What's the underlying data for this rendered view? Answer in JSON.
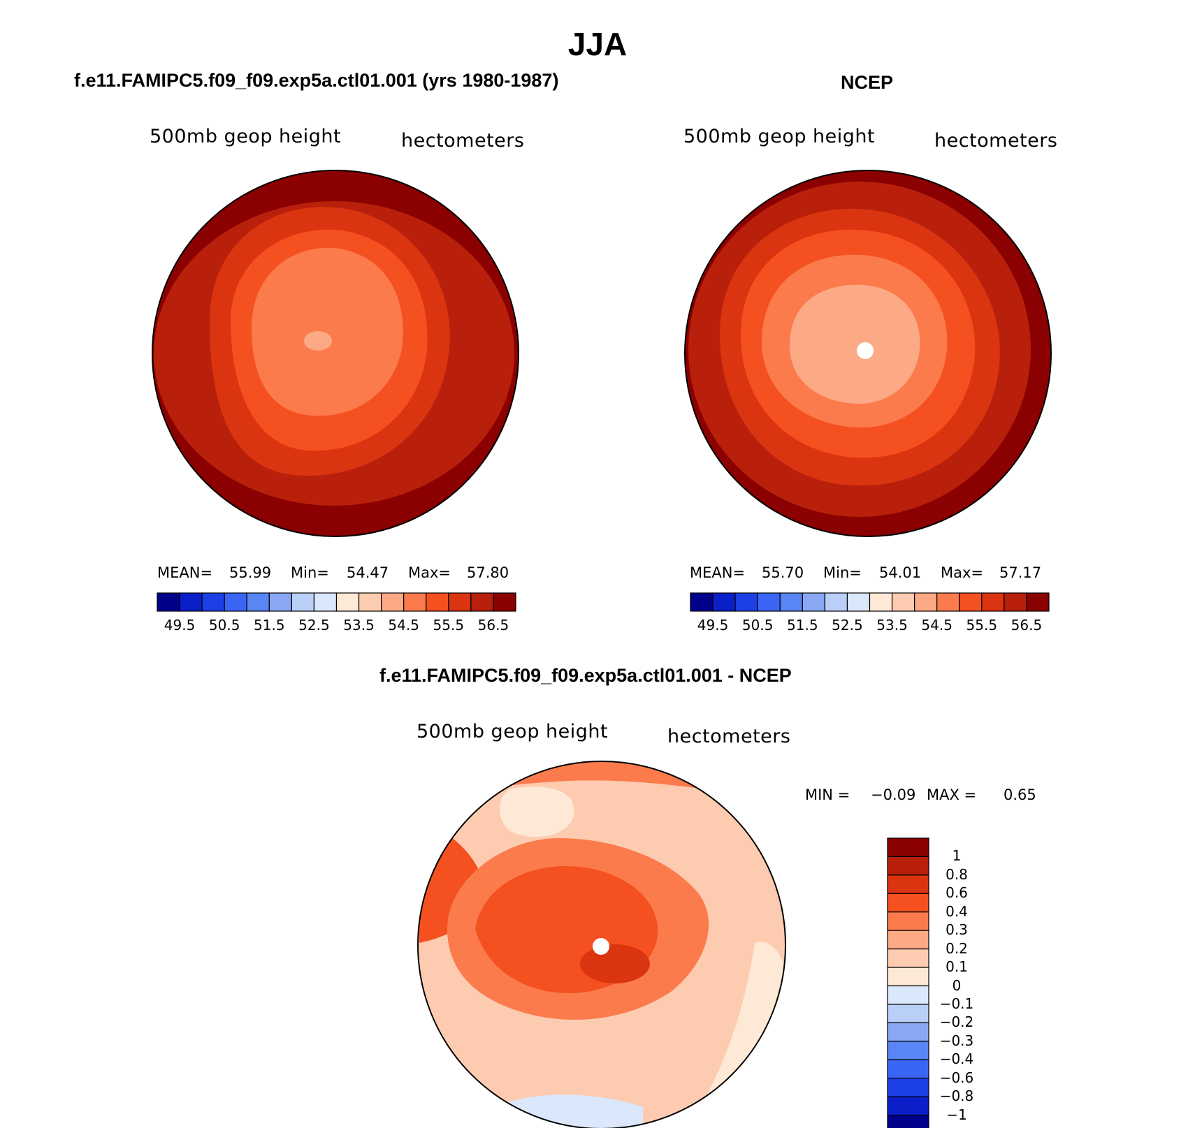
{
  "title": "JJA",
  "colors": {
    "abs_scale": [
      "#00008b",
      "#0a1fc8",
      "#1c3fe6",
      "#3b66f5",
      "#5a86f5",
      "#88a8f4",
      "#b9cff8",
      "#dbe8fb",
      "#fee9d6",
      "#fdcbb0",
      "#fca985",
      "#fb7b4d",
      "#f5501f",
      "#db3410",
      "#b8200b",
      "#8b0000"
    ],
    "diff_scale": [
      "#00008b",
      "#0a1fc8",
      "#1c3fe6",
      "#3b66f5",
      "#5a86f5",
      "#88a8f4",
      "#b9cff8",
      "#dbe8fb",
      "#fee9d6",
      "#fdcbb0",
      "#fca985",
      "#fb7b4d",
      "#f5501f",
      "#db3410",
      "#b8200b",
      "#8b0000"
    ]
  },
  "panels": [
    {
      "title": "f.e11.FAMIPC5.f09_f09.exp5a.ctl01.001 (yrs 1980-1987)",
      "field_label": "500mb geop height",
      "units_label": "hectometers",
      "mean_label": "MEAN=",
      "mean_value": "55.99",
      "min_label": "Min=",
      "min_value": "54.47",
      "max_label": "Max=",
      "max_value": "57.80",
      "colorbar_ticks": [
        "49.5",
        "50.5",
        "51.5",
        "52.5",
        "53.5",
        "54.5",
        "55.5",
        "56.5"
      ]
    },
    {
      "title": "NCEP",
      "field_label": "500mb geop height",
      "units_label": "hectometers",
      "mean_label": "MEAN=",
      "mean_value": "55.70",
      "min_label": "Min=",
      "min_value": "54.01",
      "max_label": "Max=",
      "max_value": "57.17",
      "colorbar_ticks": [
        "49.5",
        "50.5",
        "51.5",
        "52.5",
        "53.5",
        "54.5",
        "55.5",
        "56.5"
      ]
    }
  ],
  "diff_panel": {
    "title": "f.e11.FAMIPC5.f09_f09.exp5a.ctl01.001 - NCEP",
    "field_label": "500mb geop height",
    "units_label": "hectometers",
    "min_label": "MIN =",
    "min_value": "−0.09",
    "max_label": "MAX =",
    "max_value": "0.65",
    "colorbar_ticks": [
      "1",
      "0.8",
      "0.6",
      "0.4",
      "0.3",
      "0.2",
      "0.1",
      "0",
      "−0.1",
      "−0.2",
      "−0.3",
      "−0.4",
      "−0.6",
      "−0.8",
      "−1"
    ]
  }
}
